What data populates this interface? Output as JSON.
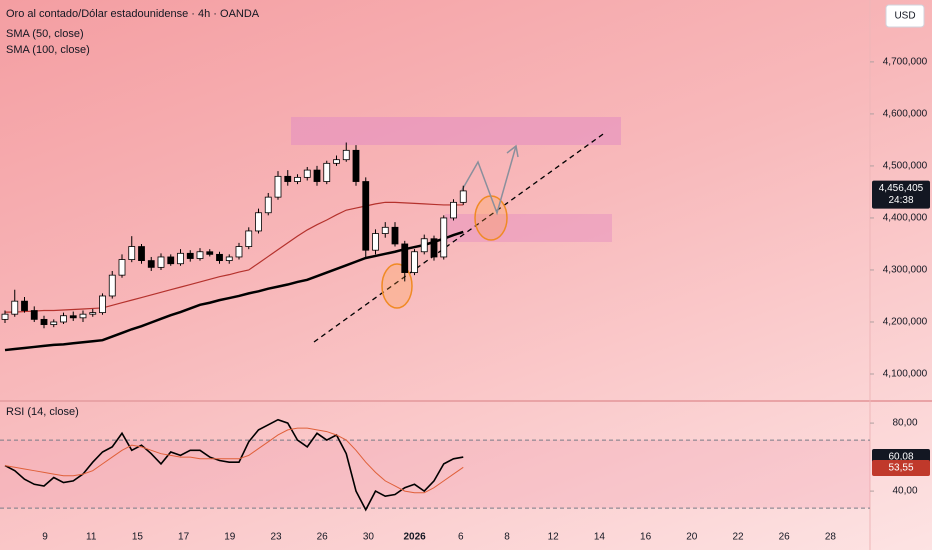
{
  "chart_data": [
    {
      "type": "candlestick",
      "title": "Oro al contado/Dólar estadounidense · 4h · OANDA",
      "currency": "USD",
      "open": [
        4205,
        4215,
        4240,
        4222,
        4205,
        4195,
        4200,
        4212,
        4208,
        4215,
        4218,
        4250,
        4290,
        4320,
        4345,
        4318,
        4305,
        4325,
        4312,
        4332,
        4322,
        4335,
        4330,
        4318,
        4325,
        4345,
        4375,
        4410,
        4440,
        4480,
        4470,
        4478,
        4492,
        4470,
        4505,
        4512,
        4530,
        4470,
        4338,
        4370,
        4382,
        4350,
        4295,
        4335,
        4360,
        4325,
        4400,
        4430
      ],
      "high": [
        4222,
        4262,
        4248,
        4230,
        4212,
        4205,
        4218,
        4220,
        4222,
        4225,
        4255,
        4298,
        4330,
        4365,
        4350,
        4325,
        4332,
        4330,
        4340,
        4338,
        4342,
        4340,
        4335,
        4330,
        4352,
        4382,
        4418,
        4448,
        4490,
        4492,
        4484,
        4498,
        4500,
        4510,
        4520,
        4545,
        4540,
        4478,
        4378,
        4392,
        4392,
        4356,
        4340,
        4368,
        4366,
        4405,
        4436,
        4462
      ],
      "low": [
        4198,
        4210,
        4218,
        4200,
        4188,
        4190,
        4196,
        4202,
        4200,
        4210,
        4214,
        4245,
        4285,
        4315,
        4312,
        4298,
        4300,
        4308,
        4308,
        4316,
        4318,
        4326,
        4312,
        4312,
        4320,
        4340,
        4370,
        4405,
        4435,
        4462,
        4465,
        4472,
        4462,
        4465,
        4500,
        4508,
        4462,
        4325,
        4330,
        4362,
        4345,
        4278,
        4290,
        4330,
        4318,
        4320,
        4395,
        4425
      ],
      "close": [
        4215,
        4240,
        4222,
        4205,
        4195,
        4200,
        4212,
        4208,
        4215,
        4218,
        4250,
        4290,
        4320,
        4345,
        4318,
        4305,
        4325,
        4312,
        4332,
        4322,
        4335,
        4330,
        4318,
        4325,
        4345,
        4375,
        4410,
        4440,
        4480,
        4470,
        4478,
        4492,
        4470,
        4505,
        4512,
        4530,
        4470,
        4338,
        4370,
        4382,
        4350,
        4295,
        4335,
        4360,
        4325,
        4400,
        4430,
        4452
      ],
      "up_color": "#ffffff",
      "down_color": "#000000",
      "series": [
        {
          "name": "SMA (50, close)",
          "color": "#b5322d",
          "width": 1.2,
          "values": [
            4219,
            4219,
            4220,
            4221,
            4222,
            4222,
            4223,
            4224,
            4225,
            4226,
            4227,
            4232,
            4237,
            4242,
            4247,
            4252,
            4257,
            4262,
            4267,
            4272,
            4277,
            4282,
            4287,
            4291,
            4296,
            4300,
            4313,
            4326,
            4339,
            4352,
            4365,
            4377,
            4387,
            4396,
            4406,
            4415,
            4419,
            4423,
            4427,
            4430,
            4430,
            4429,
            4428,
            4427,
            4426,
            4425,
            4425,
            4425
          ]
        },
        {
          "name": "SMA (100, close)",
          "color": "#000000",
          "width": 2.5,
          "values": [
            4146,
            4148,
            4150,
            4152,
            4154,
            4156,
            4157,
            4159,
            4161,
            4163,
            4165,
            4172,
            4179,
            4186,
            4192,
            4199,
            4206,
            4213,
            4219,
            4226,
            4233,
            4237,
            4242,
            4246,
            4250,
            4255,
            4259,
            4264,
            4268,
            4272,
            4277,
            4281,
            4288,
            4295,
            4302,
            4309,
            4316,
            4323,
            4327,
            4331,
            4335,
            4340,
            4344,
            4348,
            4354,
            4360,
            4367,
            4373
          ]
        }
      ],
      "ylim": [
        4050,
        4819
      ],
      "yticks": [
        {
          "value": 4100,
          "label": "4,100,000"
        },
        {
          "value": 4200,
          "label": "4,200,000"
        },
        {
          "value": 4300,
          "label": "4,300,000"
        },
        {
          "value": 4400,
          "label": "4,400,000"
        },
        {
          "value": 4500,
          "label": "4,500,000"
        },
        {
          "value": 4600,
          "label": "4,600,000"
        },
        {
          "value": 4700,
          "label": "4,700,000"
        }
      ],
      "last_price": {
        "value": 4456.405,
        "label": "4,456,405",
        "color": "#131722"
      },
      "countdown": "24:38"
    },
    {
      "type": "line",
      "title": "RSI (14, close)",
      "series": [
        {
          "color": "#000000",
          "width": 1.6,
          "values": [
            55,
            52,
            47,
            44,
            43,
            48,
            45,
            46,
            50,
            57,
            63,
            66,
            74,
            64,
            67,
            62,
            56,
            63,
            61,
            64,
            64,
            60,
            58,
            57,
            57,
            69,
            76,
            79,
            82,
            80,
            70,
            66,
            74,
            70,
            73,
            62,
            40,
            29,
            40,
            37,
            38,
            42,
            44,
            40,
            46,
            56,
            59,
            60
          ]
        },
        {
          "color": "#e0603a",
          "width": 1,
          "values": [
            55,
            54,
            53,
            52,
            51,
            50,
            49,
            49,
            50,
            52,
            56,
            60,
            64,
            67,
            66,
            64,
            62,
            61,
            60,
            60,
            59,
            59,
            59,
            59,
            59,
            61,
            65,
            69,
            73,
            76,
            77,
            77,
            76,
            75,
            73,
            70,
            64,
            57,
            51,
            46,
            43,
            40,
            39,
            39,
            42,
            46,
            50,
            54
          ]
        }
      ],
      "band": [
        30,
        70
      ],
      "ylim": [
        23,
        92.4
      ],
      "yticks": [
        {
          "value": 40,
          "label": "40,00"
        },
        {
          "value": 80,
          "label": "80,00"
        }
      ],
      "last_values": [
        {
          "value": 60.08,
          "label": "60,08",
          "color": "#131722"
        },
        {
          "value": 53.55,
          "label": "53,55",
          "color": "#c0392b"
        }
      ]
    }
  ],
  "x_axis": {
    "categories": [
      "9",
      "11",
      "15",
      "17",
      "19",
      "23",
      "26",
      "30",
      "2026",
      "6",
      "8",
      "12",
      "14",
      "16",
      "20",
      "22",
      "26",
      "28"
    ]
  }
}
